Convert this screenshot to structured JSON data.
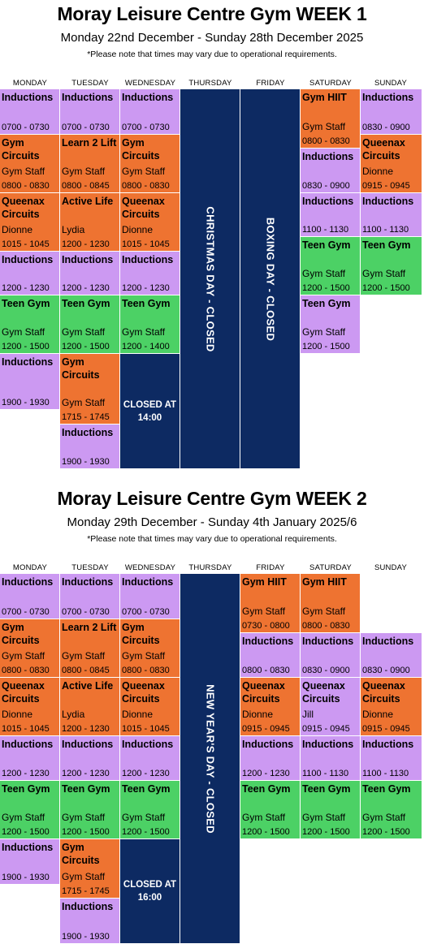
{
  "week1": {
    "title": "Moray Leisure Centre Gym WEEK 1",
    "subtitle": "Monday 22nd December - Sunday 28th December 2025",
    "note": "*Please note that times may vary due to operational requirements.",
    "days": [
      "MONDAY",
      "TUESDAY",
      "WEDNESDAY",
      "THURSDAY",
      "FRIDAY",
      "SATURDAY",
      "SUNDAY"
    ],
    "closures": {
      "thursday": "CHRISTMAS DAY - CLOSED",
      "friday": "BOXING DAY - CLOSED",
      "wednesday_close_1": "CLOSED AT",
      "wednesday_close_2": "14:00"
    },
    "sessions": {
      "mon": [
        {
          "name": "Inductions",
          "staff": "",
          "time": "0700 - 0730"
        },
        {
          "name": "Gym Circuits",
          "staff": "Gym Staff",
          "time": "0800 - 0830"
        },
        {
          "name": "Queenax Circuits",
          "staff": "Dionne",
          "time": "1015 - 1045"
        },
        {
          "name": "Inductions",
          "staff": "",
          "time": "1200 - 1230"
        },
        {
          "name": "Teen Gym",
          "staff": "Gym Staff",
          "time": "1200 - 1500"
        },
        {
          "name": "Inductions",
          "staff": "",
          "time": "1900 - 1930"
        }
      ],
      "tue": [
        {
          "name": "Inductions",
          "staff": "",
          "time": "0700 - 0730"
        },
        {
          "name": "Learn 2 Lift",
          "staff": "Gym Staff",
          "time": "0800 - 0845"
        },
        {
          "name": "Active Life",
          "staff": "Lydia",
          "time": "1200 - 1230"
        },
        {
          "name": "Inductions",
          "staff": "",
          "time": "1200 - 1230"
        },
        {
          "name": "Teen Gym",
          "staff": "Gym Staff",
          "time": "1200 - 1500"
        },
        {
          "name": "Gym Circuits",
          "staff": "Gym Staff",
          "time": "1715 - 1745"
        },
        {
          "name": "Inductions",
          "staff": "",
          "time": "1900 - 1930"
        }
      ],
      "wed": [
        {
          "name": "Inductions",
          "staff": "",
          "time": "0700 - 0730"
        },
        {
          "name": "Gym Circuits",
          "staff": "Gym Staff",
          "time": "0800 - 0830"
        },
        {
          "name": "Queenax Circuits",
          "staff": "Dionne",
          "time": "1015 - 1045"
        },
        {
          "name": "Inductions",
          "staff": "",
          "time": "1200 - 1230"
        },
        {
          "name": "Teen Gym",
          "staff": "Gym Staff",
          "time": "1200 - 1400"
        }
      ],
      "sat": [
        {
          "name": "Gym HIIT",
          "staff": "Gym Staff",
          "time": "0800 - 0830"
        },
        {
          "name": "Inductions",
          "staff": "",
          "time": "0830 - 0900"
        },
        {
          "name": "Inductions",
          "staff": "",
          "time": "1100 - 1130"
        },
        {
          "name": "Teen Gym",
          "staff": "Gym Staff",
          "time": "1200 - 1500"
        },
        {
          "name": "Teen Gym",
          "staff": "Gym Staff",
          "time": "1200 - 1500"
        }
      ],
      "sun": [
        {
          "name": "Inductions",
          "staff": "",
          "time": "0830 - 0900"
        },
        {
          "name": "Queenax Circuits",
          "staff": "Dionne",
          "time": "0915 - 0945"
        },
        {
          "name": "Inductions",
          "staff": "",
          "time": "1100 - 1130"
        },
        {
          "name": "Teen Gym",
          "staff": "Gym Staff",
          "time": "1200 - 1500"
        }
      ]
    }
  },
  "week2": {
    "title": "Moray Leisure Centre Gym WEEK 2",
    "subtitle": "Monday 29th December - Sunday 4th January 2025/6",
    "note": "*Please note that times may vary due to operational requirements.",
    "days": [
      "MONDAY",
      "TUESDAY",
      "WEDNESDAY",
      "THURSDAY",
      "FRIDAY",
      "SATURDAY",
      "SUNDAY"
    ],
    "closures": {
      "thursday": "NEW YEAR'S DAY - CLOSED",
      "wednesday_close_1": "CLOSED AT",
      "wednesday_close_2": "16:00"
    },
    "sessions": {
      "mon": [
        {
          "name": "Inductions",
          "staff": "",
          "time": "0700 - 0730"
        },
        {
          "name": "Gym Circuits",
          "staff": "Gym Staff",
          "time": "0800 - 0830"
        },
        {
          "name": "Queenax Circuits",
          "staff": "Dionne",
          "time": "1015 - 1045"
        },
        {
          "name": "Inductions",
          "staff": "",
          "time": "1200 - 1230"
        },
        {
          "name": "Teen Gym",
          "staff": "Gym Staff",
          "time": "1200 - 1500"
        },
        {
          "name": "Inductions",
          "staff": "",
          "time": "1900 - 1930"
        }
      ],
      "tue": [
        {
          "name": "Inductions",
          "staff": "",
          "time": "0700 - 0730"
        },
        {
          "name": "Learn 2 Lift",
          "staff": "Gym Staff",
          "time": "0800 - 0845"
        },
        {
          "name": "Active Life",
          "staff": "Lydia",
          "time": "1200 - 1230"
        },
        {
          "name": "Inductions",
          "staff": "",
          "time": "1200 - 1230"
        },
        {
          "name": "Teen Gym",
          "staff": "Gym Staff",
          "time": "1200 - 1500"
        },
        {
          "name": "Gym Circuits",
          "staff": "Gym Staff",
          "time": "1715 - 1745"
        },
        {
          "name": "Inductions",
          "staff": "",
          "time": "1900 - 1930"
        }
      ],
      "wed": [
        {
          "name": "Inductions",
          "staff": "",
          "time": "0700 - 0730"
        },
        {
          "name": "Gym Circuits",
          "staff": "Gym Staff",
          "time": "0800 - 0830"
        },
        {
          "name": "Queenax Circuits",
          "staff": "Dionne",
          "time": "1015 - 1045"
        },
        {
          "name": "Inductions",
          "staff": "",
          "time": "1200 - 1230"
        },
        {
          "name": "Teen Gym",
          "staff": "Gym Staff",
          "time": "1200 - 1500"
        }
      ],
      "fri": [
        {
          "name": "Gym HIIT",
          "staff": "Gym Staff",
          "time": "0730 - 0800"
        },
        {
          "name": "Inductions",
          "staff": "",
          "time": "0800 - 0830"
        },
        {
          "name": "Queenax Circuits",
          "staff": "Dionne",
          "time": "0915 - 0945"
        },
        {
          "name": "Inductions",
          "staff": "",
          "time": "1200 - 1230"
        },
        {
          "name": "Teen Gym",
          "staff": "Gym Staff",
          "time": "1200 - 1500"
        }
      ],
      "sat": [
        {
          "name": "Gym HIIT",
          "staff": "Gym Staff",
          "time": "0800 - 0830"
        },
        {
          "name": "Inductions",
          "staff": "",
          "time": "0830 - 0900"
        },
        {
          "name": "Queenax Circuits",
          "staff": "Jill",
          "time": "0915 - 0945"
        },
        {
          "name": "Inductions",
          "staff": "",
          "time": "1100 - 1130"
        },
        {
          "name": "Teen Gym",
          "staff": "Gym Staff",
          "time": "1200 - 1500"
        }
      ],
      "sun": [
        {
          "name": "Inductions",
          "staff": "",
          "time": "0830 - 0900"
        },
        {
          "name": "Queenax Circuits",
          "staff": "Dionne",
          "time": "0915 - 0945"
        },
        {
          "name": "Inductions",
          "staff": "",
          "time": "1100 - 1130"
        },
        {
          "name": "Teen Gym",
          "staff": "Gym Staff",
          "time": "1200 - 1500"
        }
      ]
    }
  },
  "colors": {
    "inductions": "#cc99f2",
    "class": "#ee7331",
    "teen": "#4cd165",
    "closed": "#0d2a62"
  }
}
